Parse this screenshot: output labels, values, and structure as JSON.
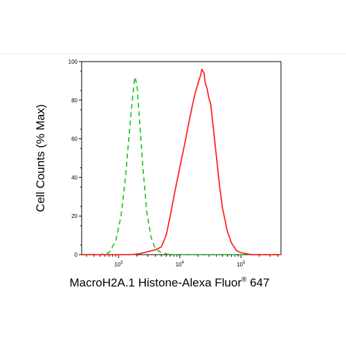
{
  "chart_data": {
    "type": "line",
    "title": "",
    "xlabel": "MacroH2A.1 Histone-Alexa Fluor",
    "xlabel_superscript": "®",
    "xlabel_suffix": " 647",
    "ylabel": "Cell Counts (% Max)",
    "x_scale": "log",
    "xlim": [
      250,
      450000
    ],
    "ylim": [
      0,
      100
    ],
    "grid": false,
    "legend": "none",
    "y_ticks": [
      {
        "value": 0,
        "label": "0"
      },
      {
        "value": 20,
        "label": "20"
      },
      {
        "value": 40,
        "label": "40"
      },
      {
        "value": 60,
        "label": "60"
      },
      {
        "value": 80,
        "label": "80"
      },
      {
        "value": 100,
        "label": "100"
      }
    ],
    "x_ticks": [
      {
        "value": 1000,
        "base": "10",
        "exp": "3"
      },
      {
        "value": 10000,
        "base": "10",
        "exp": "4"
      },
      {
        "value": 100000,
        "base": "10",
        "exp": "5"
      }
    ],
    "series": [
      {
        "color": "#22cc22",
        "style": "dashed",
        "x": [
          250,
          500,
          700,
          900,
          1100,
          1300,
          1500,
          1700,
          1850,
          2000,
          2200,
          2500,
          2900,
          3400,
          4000,
          5000,
          7000,
          10000,
          30000,
          100000,
          450000
        ],
        "y": [
          0,
          0,
          1,
          7,
          20,
          40,
          63,
          82,
          92,
          88,
          70,
          45,
          22,
          9,
          3,
          1,
          0,
          0,
          0,
          0,
          0
        ]
      },
      {
        "color": "#ff2222",
        "style": "solid",
        "x": [
          250,
          1000,
          1600,
          2200,
          3000,
          4000,
          5000,
          6000,
          7000,
          8000,
          9000,
          10000,
          12000,
          14000,
          16000,
          18000,
          20000,
          22000,
          23000,
          25000,
          26000,
          28000,
          30000,
          32000,
          35000,
          40000,
          45000,
          50000,
          60000,
          70000,
          85000,
          100000,
          150000,
          450000
        ],
        "y": [
          0,
          0,
          0,
          0.5,
          1.5,
          2.5,
          4,
          10,
          20,
          30,
          38,
          45,
          57,
          68,
          77,
          84,
          89,
          93,
          96,
          94,
          89,
          86,
          81,
          78,
          67,
          50,
          35,
          24,
          12,
          6,
          2,
          1,
          0,
          0
        ]
      }
    ]
  }
}
